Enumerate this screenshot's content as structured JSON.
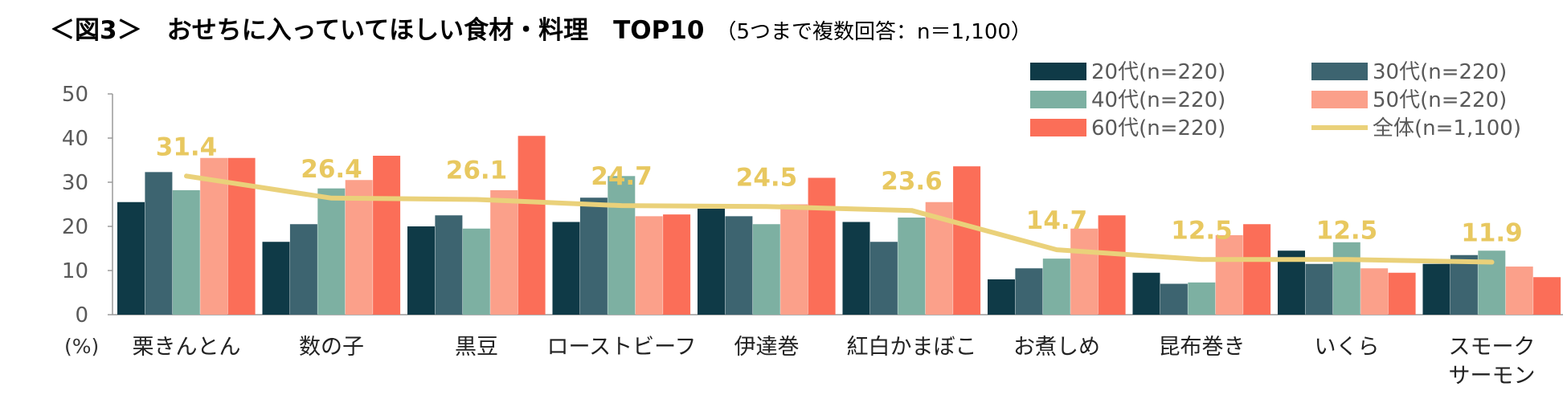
{
  "title": {
    "main": "＜図3＞　おせちに入っていてほしい食材・料理　TOP10",
    "sub": "（5つまで複数回答：n＝1,100）"
  },
  "chart_data": {
    "type": "bar",
    "title": "＜図3＞　おせちに入っていてほしい食材・料理　TOP10",
    "subtitle": "（5つまで複数回答：n＝1,100）",
    "ylabel": "(%)",
    "ylim": [
      0,
      50
    ],
    "yticks": [
      0,
      10,
      20,
      30,
      40,
      50
    ],
    "grid": false,
    "legend_position": "top-right",
    "categories": [
      "栗きんとん",
      "数の子",
      "黒豆",
      "ローストビーフ",
      "伊達巻",
      "紅白かまぼこ",
      "お煮しめ",
      "昆布巻き",
      "いくら",
      "スモーク\nサーモン"
    ],
    "series": [
      {
        "name": "20代(n=220)",
        "color": "#0f3a47",
        "values": [
          25.5,
          16.5,
          20.0,
          21.0,
          24.0,
          21.0,
          8.0,
          9.5,
          14.5,
          11.5
        ]
      },
      {
        "name": "30代(n=220)",
        "color": "#3d6470",
        "values": [
          32.3,
          20.5,
          22.5,
          26.5,
          22.3,
          16.5,
          10.5,
          7.0,
          11.5,
          13.5
        ]
      },
      {
        "name": "40代(n=220)",
        "color": "#7db0a2",
        "values": [
          28.2,
          28.6,
          19.5,
          31.4,
          20.5,
          22.0,
          12.7,
          7.3,
          16.4,
          14.5
        ]
      },
      {
        "name": "50代(n=220)",
        "color": "#fba08a",
        "values": [
          35.5,
          30.5,
          28.2,
          22.3,
          25.0,
          25.5,
          19.5,
          18.0,
          10.5,
          10.9
        ]
      },
      {
        "name": "60代(n=220)",
        "color": "#fb6e58",
        "values": [
          35.5,
          36.0,
          40.5,
          22.7,
          31.0,
          33.6,
          22.5,
          20.5,
          9.5,
          8.5
        ]
      }
    ],
    "line_series": {
      "name": "全体(n=1,100)",
      "color": "#ead17a",
      "values": [
        31.4,
        26.4,
        26.1,
        24.7,
        24.5,
        23.6,
        14.7,
        12.5,
        12.5,
        11.9
      ],
      "labels": [
        "31.4",
        "26.4",
        "26.1",
        "24.7",
        "24.5",
        "23.6",
        "14.7",
        "12.5",
        "12.5",
        "11.9"
      ],
      "label_color": "#e8c860"
    }
  }
}
